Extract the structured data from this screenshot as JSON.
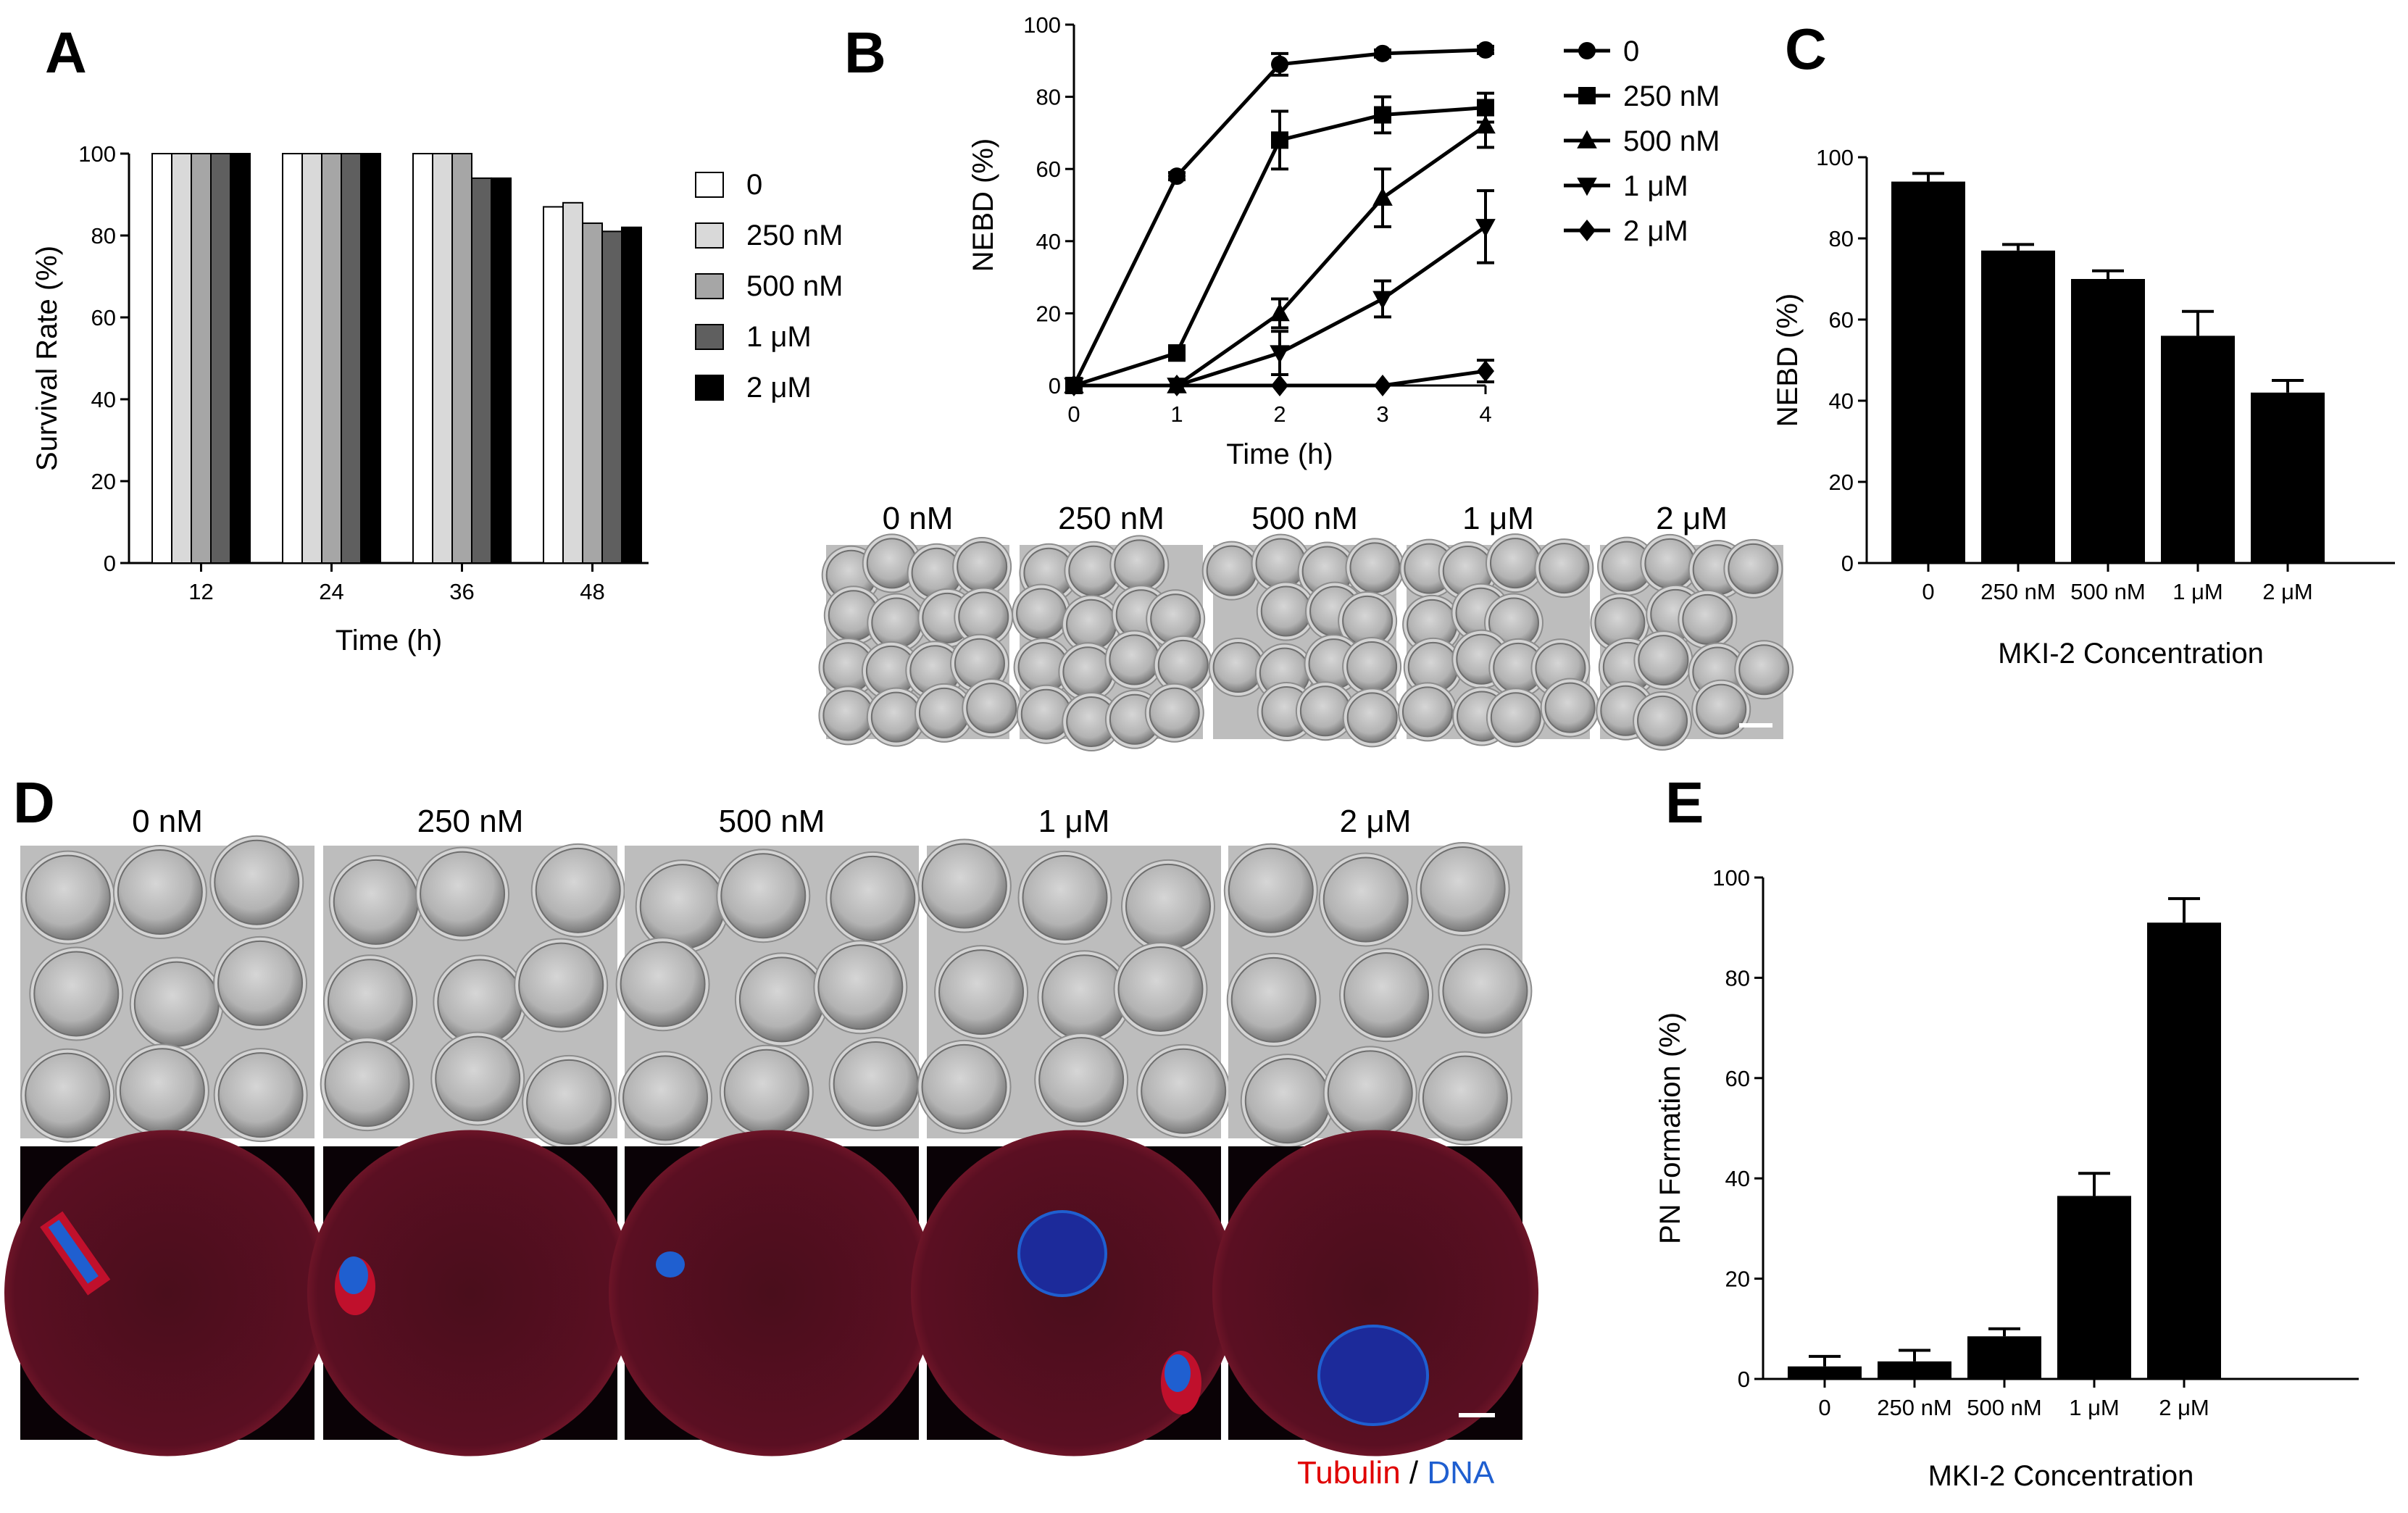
{
  "panels": {
    "A": {
      "letter": "A"
    },
    "B": {
      "letter": "B"
    },
    "C": {
      "letter": "C"
    },
    "D": {
      "letter": "D"
    },
    "E": {
      "letter": "E"
    }
  },
  "chart_data": [
    {
      "id": "A",
      "type": "bar",
      "categories": [
        "12",
        "24",
        "36",
        "48"
      ],
      "series": [
        {
          "name": "0",
          "color": "#ffffff",
          "values": [
            100,
            100,
            100,
            87
          ]
        },
        {
          "name": "250 nM",
          "color": "#d9d9d9",
          "values": [
            100,
            100,
            100,
            88
          ]
        },
        {
          "name": "500 nM",
          "color": "#a6a6a6",
          "values": [
            100,
            100,
            100,
            83
          ]
        },
        {
          "name": "1 μM",
          "color": "#5f5f5f",
          "values": [
            100,
            100,
            94,
            81
          ]
        },
        {
          "name": "2 μM",
          "color": "#000000",
          "values": [
            100,
            100,
            94,
            82
          ]
        }
      ],
      "xlabel": "Time (h)",
      "ylabel": "Survival Rate (%)",
      "ylim": [
        0,
        100
      ],
      "yticks": [
        "0",
        "20",
        "40",
        "60",
        "80",
        "100"
      ],
      "legend": "right"
    },
    {
      "id": "B",
      "type": "line",
      "x": [
        0,
        1,
        2,
        3,
        4
      ],
      "xticks": [
        "0",
        "1",
        "2",
        "3",
        "4"
      ],
      "series": [
        {
          "name": "0",
          "marker": "circle",
          "values": [
            0,
            58,
            89,
            92,
            93
          ],
          "err": [
            0,
            1,
            3,
            1,
            1
          ]
        },
        {
          "name": "250 nM",
          "marker": "square",
          "values": [
            0,
            9,
            68,
            75,
            77
          ],
          "err": [
            0,
            2,
            8,
            5,
            4
          ]
        },
        {
          "name": "500 nM",
          "marker": "triangle-up",
          "values": [
            0,
            0,
            20,
            52,
            72
          ],
          "err": [
            0,
            0,
            4,
            8,
            6
          ]
        },
        {
          "name": "1 μM",
          "marker": "triangle-down",
          "values": [
            0,
            0,
            9,
            24,
            44
          ],
          "err": [
            0,
            0,
            6,
            5,
            10
          ]
        },
        {
          "name": "2 μM",
          "marker": "diamond",
          "values": [
            0,
            0,
            0,
            0,
            4
          ],
          "err": [
            0,
            0,
            0,
            0,
            3
          ]
        }
      ],
      "xlabel": "Time (h)",
      "ylabel": "NEBD (%)",
      "ylim": [
        0,
        100
      ],
      "yticks": [
        "0",
        "20",
        "40",
        "60",
        "80",
        "100"
      ],
      "legend": "right"
    },
    {
      "id": "C",
      "type": "bar",
      "categories": [
        "0",
        "250 nM",
        "500 nM",
        "1 μM",
        "2 μM"
      ],
      "values": [
        94,
        77,
        70,
        56,
        42
      ],
      "err": [
        2,
        1.5,
        2,
        6,
        3
      ],
      "xlabel": "MKI-2 Concentration",
      "ylabel": "NEBD (%)",
      "ylim": [
        0,
        100
      ],
      "yticks": [
        "0",
        "20",
        "40",
        "60",
        "80",
        "100"
      ]
    },
    {
      "id": "E",
      "type": "bar",
      "categories": [
        "0",
        "250 nM",
        "500 nM",
        "1 μM",
        "2 μM"
      ],
      "values": [
        2.5,
        3.5,
        8.5,
        36.5,
        91
      ],
      "err": [
        2,
        2.2,
        1.5,
        4.5,
        4.8
      ],
      "xlabel": "MKI-2 Concentration",
      "ylabel": "PN Formation (%)",
      "ylim": [
        0,
        100
      ],
      "yticks": [
        "0",
        "20",
        "40",
        "60",
        "80",
        "100"
      ]
    }
  ],
  "imagesB": {
    "headers": [
      "0 nM",
      "250 nM",
      "500 nM",
      "1 μM",
      "2 μM"
    ]
  },
  "imagesD": {
    "headers": [
      "0 nM",
      "250 nM",
      "500 nM",
      "1 μM",
      "2 μM"
    ],
    "stain": {
      "tubulin": "Tubulin",
      "sep": " / ",
      "dna": "DNA"
    },
    "colors": {
      "tubulin": "#e00000",
      "dna": "#1f5fd0"
    }
  }
}
